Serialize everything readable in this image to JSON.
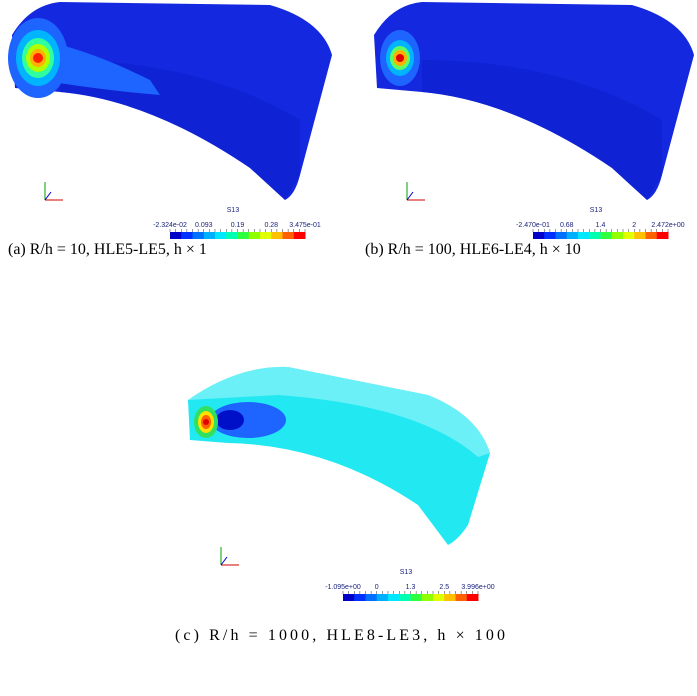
{
  "panels": [
    {
      "title": "S13",
      "colorbar_labels": [
        "-2.324e-02",
        "0.093",
        "0.19",
        "0.28",
        "3.475e-01"
      ],
      "caption": "(a) R/h = 10, HLE5-LE5, h × 1"
    },
    {
      "title": "S13",
      "colorbar_labels": [
        "-2.470e-01",
        "0.68",
        "1.4",
        "2",
        "2.472e+00"
      ],
      "caption": "(b) R/h = 100, HLE6-LE4, h × 10"
    },
    {
      "title": "S13",
      "colorbar_labels": [
        "-1.095e+00",
        "0",
        "1.3",
        "2.5",
        "3.996e+00"
      ],
      "caption": "(c) R/h = 1000, HLE8-LE3, h × 100"
    }
  ]
}
